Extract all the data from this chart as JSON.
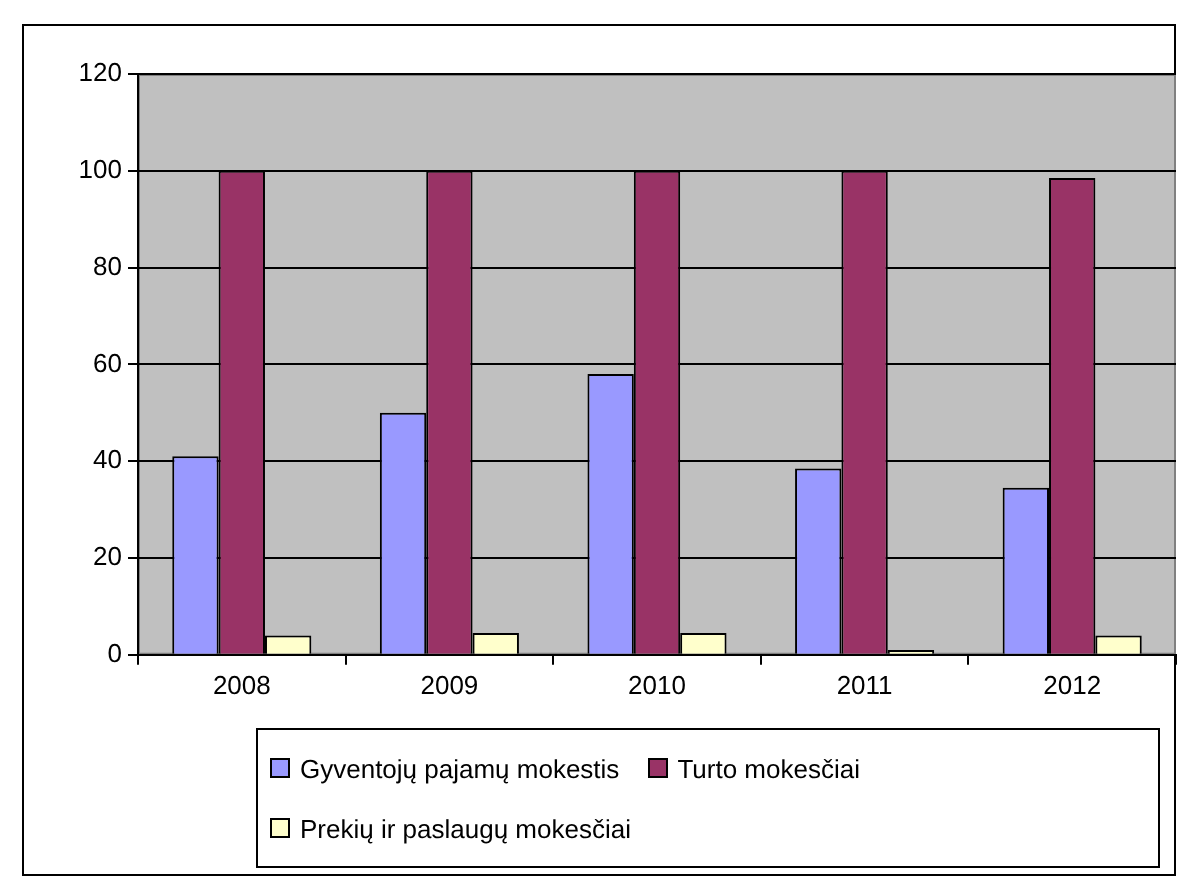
{
  "chart_data": {
    "type": "bar",
    "categories": [
      "2008",
      "2009",
      "2010",
      "2011",
      "2012"
    ],
    "series": [
      {
        "name": "Gyventojų pajamų mokestis",
        "color": "#9999ff",
        "values": [
          41,
          50,
          58,
          38.5,
          34.5
        ]
      },
      {
        "name": "Turto mokesčiai",
        "color": "#993366",
        "values": [
          100,
          100,
          100,
          100,
          98.5
        ]
      },
      {
        "name": "Prekių ir paslaugų mokesčiai",
        "color": "#ffffcc",
        "values": [
          4,
          4.5,
          4.5,
          1,
          4
        ]
      }
    ],
    "ylim": [
      0,
      120
    ],
    "yticks": [
      0,
      20,
      40,
      60,
      80,
      100,
      120
    ],
    "grid": "y",
    "legend": "bottom"
  }
}
